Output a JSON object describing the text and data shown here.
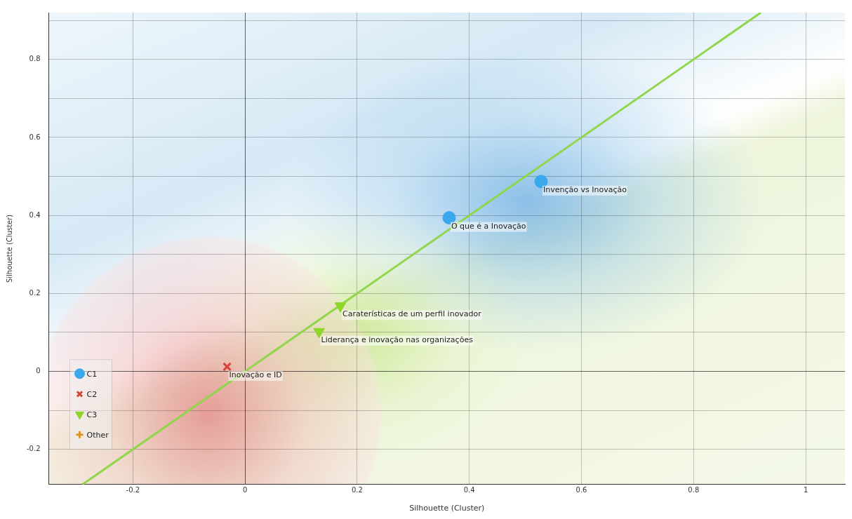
{
  "chart_data": {
    "type": "scatter",
    "xlabel": "Silhouette (Cluster)",
    "ylabel": "Silhouette (Cluster)",
    "xlim": [
      -0.35,
      1.07
    ],
    "xticks": [
      -0.2,
      0,
      0.2,
      0.4,
      0.6,
      0.8,
      1
    ],
    "ylim": [
      -0.29,
      0.92
    ],
    "yticks": [
      -0.2,
      {
        "value": -0.1,
        "label": null
      },
      0,
      {
        "value": 0.1,
        "label": null
      },
      0.2,
      {
        "value": 0.3,
        "label": null
      },
      0.4,
      {
        "value": 0.5,
        "label": null
      },
      0.6,
      {
        "value": 0.7,
        "label": null
      },
      0.8,
      {
        "value": 0.9,
        "label": null
      }
    ],
    "grid": true,
    "legend": "bottom left",
    "series": [
      {
        "name": "C1",
        "marker": "circle",
        "color": "#3aa8ea",
        "x": [
          0.364,
          0.528
        ],
        "values": [
          0.394,
          0.487
        ]
      },
      {
        "name": "C2",
        "marker": "cross",
        "color": "#d4463a",
        "x": [
          -0.032
        ],
        "values": [
          0.012
        ]
      },
      {
        "name": "C3",
        "marker": "triangle",
        "color": "#8ed62a",
        "x": [
          0.17,
          0.132
        ],
        "values": [
          0.168,
          0.102
        ]
      },
      {
        "name": "Other",
        "marker": "plus",
        "color": "#d9962e"
      },
      {
        "type": "line",
        "marker": "none",
        "color": "#8fd64a",
        "x": [
          -0.29,
          0.92
        ],
        "values": [
          -0.29,
          0.92
        ]
      }
    ],
    "annotations": [
      {
        "text": "Invenção vs Inovação",
        "x": 0.528,
        "y": 0.487
      },
      {
        "text": "O que é a Inovação",
        "x": 0.364,
        "y": 0.394
      },
      {
        "text": "Caraterísticas de um perfil inovador",
        "x": 0.17,
        "y": 0.168
      },
      {
        "text": "Liderança e inovação nas organizações",
        "x": 0.132,
        "y": 0.102
      },
      {
        "text": "Inovação e ID",
        "x": -0.032,
        "y": 0.012
      }
    ]
  }
}
